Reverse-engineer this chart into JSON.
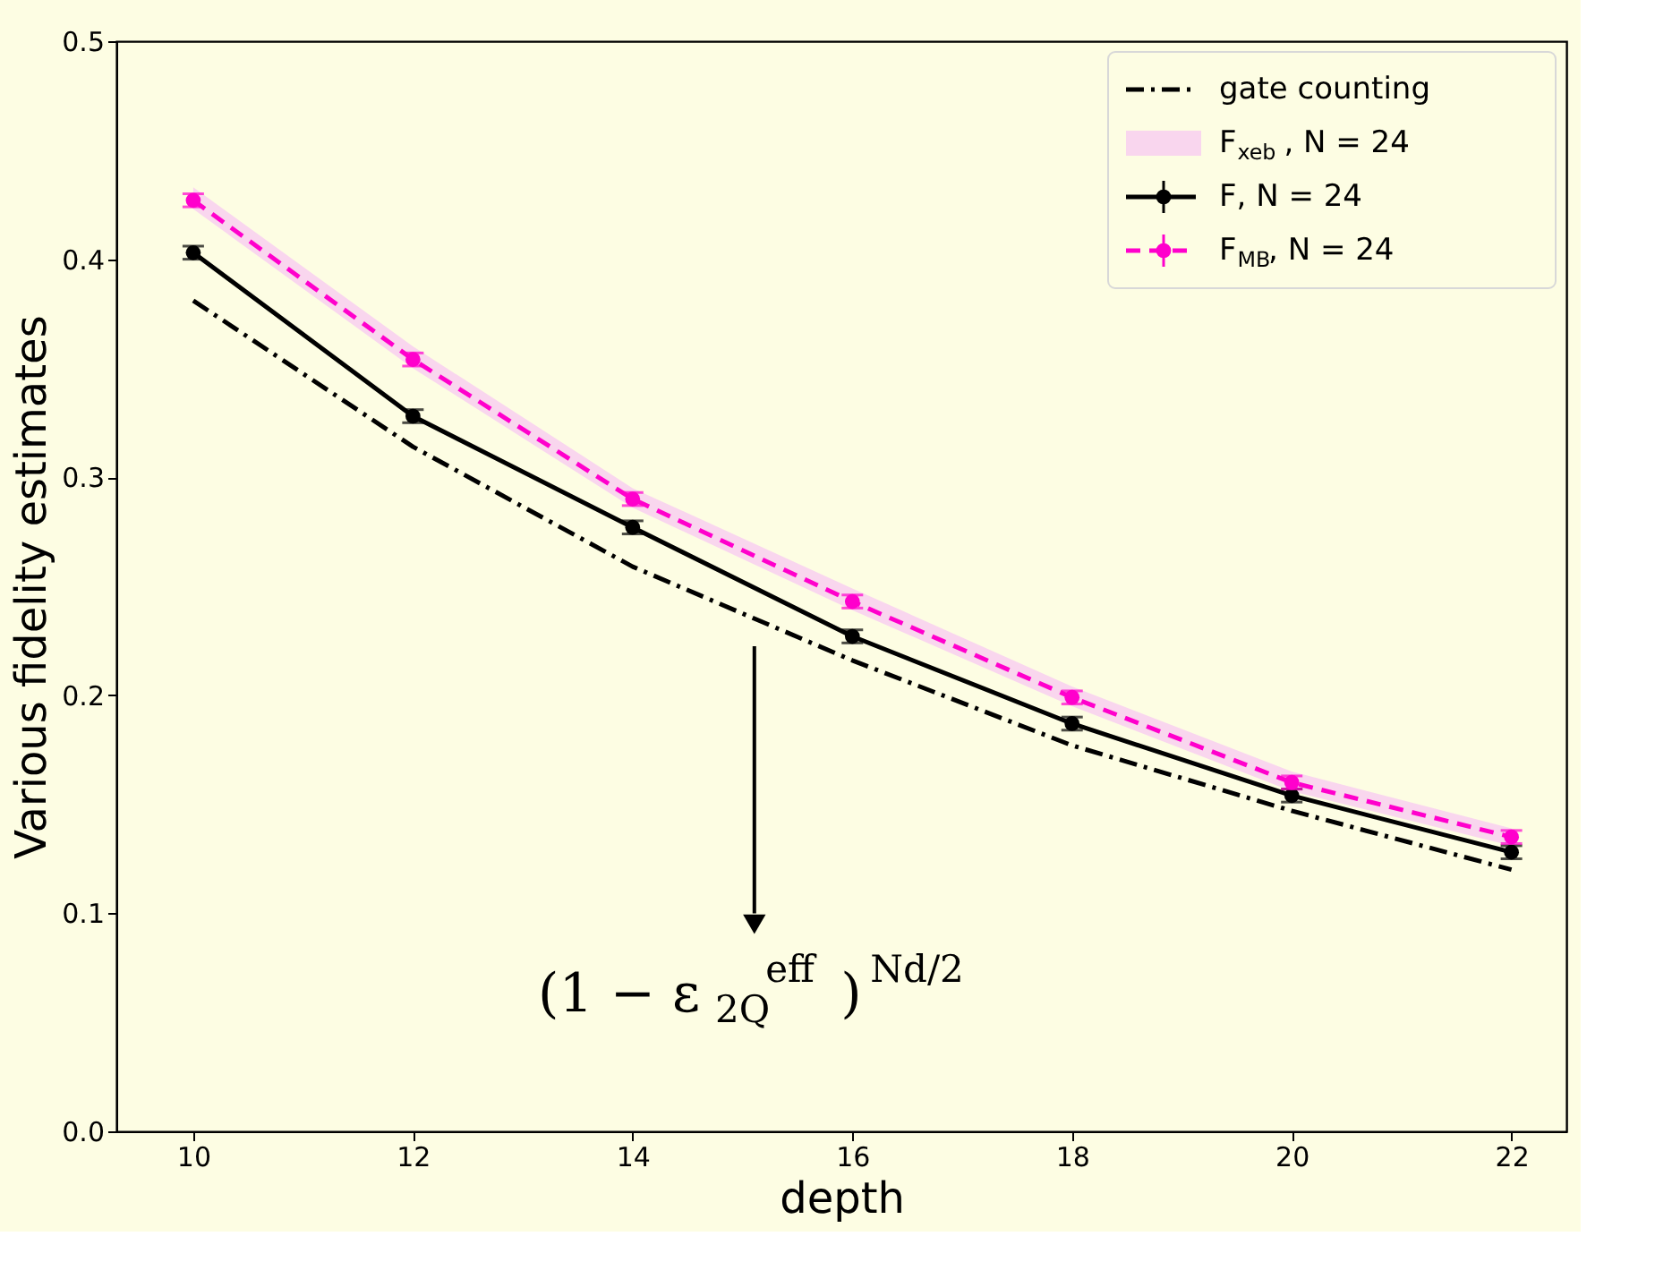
{
  "chart_data": {
    "type": "line",
    "xlabel": "depth",
    "ylabel": "Various fidelity estimates",
    "x": [
      10,
      12,
      14,
      16,
      18,
      20,
      22
    ],
    "xlim": [
      9.3,
      22.5
    ],
    "ylim": [
      0,
      0.5
    ],
    "xticks": [
      10,
      12,
      14,
      16,
      18,
      20,
      22
    ],
    "yticks": [
      {
        "value": 0,
        "label": "0.0"
      },
      0.1,
      0.2,
      0.3,
      0.4,
      0.5
    ],
    "legend": "top right",
    "grid": false,
    "series": [
      {
        "name": "gate counting",
        "color": "#000000",
        "line_style": "dashdot",
        "values": [
          0.381,
          0.314,
          0.259,
          0.216,
          0.177,
          0.147,
          0.12
        ]
      },
      {
        "name": "F$_{xeb}$, N = 24",
        "color": "#f9d6ee",
        "values": [
          null,
          null,
          null,
          null,
          null,
          null,
          null
        ],
        "lower": [
          0.423,
          0.35,
          0.286,
          0.239,
          0.195,
          0.156,
          0.131
        ],
        "upper": [
          0.433,
          0.36,
          0.295,
          0.249,
          0.204,
          0.165,
          0.139
        ]
      },
      {
        "name": "F, N = 24",
        "color": "#000000",
        "line_style": "solid",
        "marker": "circle",
        "values": [
          0.403,
          0.328,
          0.277,
          0.227,
          0.187,
          0.154,
          0.128
        ],
        "errors": [
          0.003,
          0.003,
          0.003,
          0.003,
          0.003,
          0.003,
          0.003
        ]
      },
      {
        "name": "F$_{MB}$, N = 24",
        "color": "#ff00cc",
        "line_style": "dashed",
        "marker": "circle",
        "values": [
          0.427,
          0.354,
          0.29,
          0.243,
          0.199,
          0.16,
          0.135
        ],
        "errors": [
          0.003,
          0.003,
          0.003,
          0.003,
          0.003,
          0.003,
          0.003
        ]
      }
    ],
    "annotations": [
      "(1 − ε$_{2Q}$$^{eff}$)$^{Nd/2}$"
    ]
  }
}
